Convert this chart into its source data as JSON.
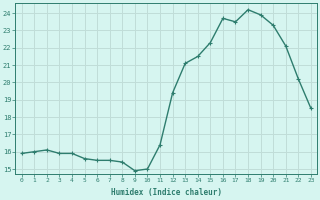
{
  "x": [
    0,
    1,
    2,
    3,
    4,
    5,
    6,
    7,
    8,
    9,
    10,
    11,
    12,
    13,
    14,
    15,
    16,
    17,
    18,
    19,
    20,
    21,
    22,
    23
  ],
  "y": [
    15.9,
    16.0,
    16.1,
    15.9,
    15.9,
    15.6,
    15.5,
    15.5,
    15.4,
    14.9,
    15.0,
    16.4,
    19.4,
    21.1,
    21.5,
    22.3,
    23.7,
    23.5,
    24.2,
    23.9,
    23.3,
    22.1,
    20.2,
    18.5
  ],
  "line_color": "#2e7d6e",
  "bg_color": "#d6f5f0",
  "grid_color": "#c0ddd8",
  "xlabel": "Humidex (Indice chaleur)",
  "ylabel_ticks": [
    15,
    16,
    17,
    18,
    19,
    20,
    21,
    22,
    23,
    24
  ],
  "xlim": [
    -0.5,
    23.5
  ],
  "ylim": [
    14.7,
    24.6
  ],
  "marker": "+",
  "markersize": 3,
  "linewidth": 1.0
}
